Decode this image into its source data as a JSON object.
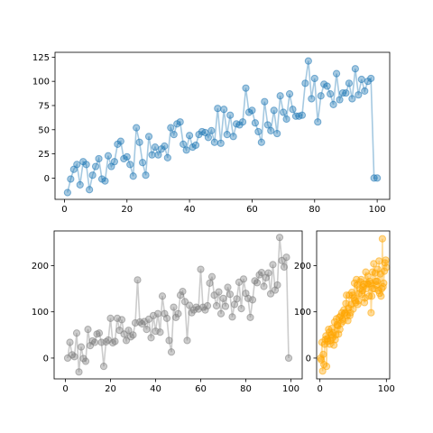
{
  "chart_data": [
    {
      "type": "line",
      "panel": "top",
      "title": "",
      "xlabel": "",
      "ylabel": "",
      "xlim": [
        -3,
        104
      ],
      "ylim": [
        -22,
        130
      ],
      "xticks": [
        0,
        20,
        40,
        60,
        80,
        100
      ],
      "yticks": [
        0,
        25,
        50,
        75,
        100,
        125
      ],
      "grid": false,
      "legend": "none",
      "color": "#1f77b4",
      "marker": "circle",
      "series": [
        {
          "x": [
            1,
            2,
            3,
            4,
            5,
            6,
            7,
            8,
            9,
            10,
            11,
            12,
            13,
            14,
            15,
            16,
            17,
            18,
            19,
            20,
            21,
            22,
            23,
            24,
            25,
            26,
            27,
            28,
            29,
            30,
            31,
            32,
            33,
            34,
            35,
            36,
            37,
            38,
            39,
            40,
            41,
            42,
            43,
            44,
            45,
            46,
            47,
            48,
            49,
            50,
            51,
            52,
            53,
            54,
            55,
            56,
            57,
            58,
            59,
            60,
            61,
            62,
            63,
            64,
            65,
            66,
            67,
            68,
            69,
            70,
            71,
            72,
            73,
            74,
            75,
            76,
            77,
            78,
            79,
            80,
            81,
            82,
            83,
            84,
            85,
            86,
            87,
            88,
            89,
            90,
            91,
            92,
            93,
            94,
            95,
            96,
            97,
            98,
            99,
            100
          ],
          "y": [
            -15,
            -1,
            9,
            14,
            -7,
            17,
            14,
            -12,
            3,
            12,
            20,
            -1,
            -3,
            23,
            12,
            17,
            35,
            38,
            20,
            22,
            14,
            2,
            52,
            37,
            16,
            3,
            43,
            24,
            32,
            24,
            30,
            33,
            21,
            52,
            45,
            56,
            58,
            35,
            29,
            44,
            32,
            34,
            45,
            48,
            47,
            42,
            49,
            37,
            72,
            36,
            71,
            45,
            65,
            43,
            56,
            55,
            58,
            93,
            68,
            70,
            57,
            48,
            37,
            79,
            55,
            49,
            70,
            46,
            85,
            68,
            61,
            87,
            71,
            64,
            64,
            65,
            98,
            121,
            82,
            103,
            58,
            85,
            97,
            95,
            87,
            76,
            108,
            81,
            88,
            88,
            98,
            82,
            113,
            86,
            102,
            90,
            100,
            103,
            0,
            0
          ]
        }
      ]
    },
    {
      "type": "line",
      "panel": "bottom-left",
      "title": "",
      "xlabel": "",
      "ylabel": "",
      "xlim": [
        -5,
        105
      ],
      "ylim": [
        -45,
        275
      ],
      "xticks": [
        0,
        20,
        40,
        60,
        80,
        100
      ],
      "yticks": [
        0,
        100,
        200
      ],
      "grid": false,
      "legend": "none",
      "color": "#7f7f7f",
      "marker": "circle",
      "series": [
        {
          "x": [
            1,
            2,
            3,
            4,
            5,
            6,
            7,
            8,
            9,
            10,
            11,
            12,
            13,
            14,
            15,
            16,
            17,
            18,
            19,
            20,
            21,
            22,
            23,
            24,
            25,
            26,
            27,
            28,
            29,
            30,
            31,
            32,
            33,
            34,
            35,
            36,
            37,
            38,
            39,
            40,
            41,
            42,
            43,
            44,
            45,
            46,
            47,
            48,
            49,
            50,
            51,
            52,
            53,
            54,
            55,
            56,
            57,
            58,
            59,
            60,
            61,
            62,
            63,
            64,
            65,
            66,
            67,
            68,
            69,
            70,
            71,
            72,
            73,
            74,
            75,
            76,
            77,
            78,
            79,
            80,
            81,
            82,
            83,
            84,
            85,
            86,
            87,
            88,
            89,
            90,
            91,
            92,
            93,
            94,
            95,
            96,
            97,
            98,
            99
          ],
          "y": [
            0,
            34,
            7,
            3,
            54,
            -30,
            24,
            -1,
            -7,
            62,
            27,
            37,
            34,
            52,
            54,
            34,
            -18,
            35,
            39,
            86,
            33,
            36,
            86,
            60,
            83,
            52,
            38,
            60,
            46,
            50,
            76,
            169,
            78,
            74,
            79,
            62,
            84,
            44,
            92,
            58,
            96,
            56,
            134,
            96,
            86,
            38,
            13,
            110,
            88,
            96,
            136,
            144,
            122,
            38,
            114,
            98,
            104,
            110,
            106,
            192,
            110,
            104,
            113,
            162,
            176,
            136,
            113,
            143,
            96,
            129,
            112,
            153,
            138,
            89,
            116,
            128,
            164,
            107,
            171,
            140,
            129,
            88,
            126,
            167,
            163,
            180,
            185,
            155,
            174,
            184,
            139,
            202,
            147,
            158,
            261,
            211,
            197,
            218,
            0
          ]
        }
      ]
    },
    {
      "type": "line",
      "panel": "bottom-right",
      "title": "",
      "xlabel": "",
      "ylabel": "",
      "xlim": [
        -5,
        105
      ],
      "ylim": [
        -45,
        275
      ],
      "xticks": [
        0,
        100
      ],
      "yticks": [
        0,
        100,
        200
      ],
      "grid": false,
      "legend": "none",
      "color": "#ffa500",
      "marker": "circle",
      "series": [
        {
          "x": [
            1,
            2,
            3,
            4,
            5,
            6,
            7,
            8,
            9,
            10,
            11,
            12,
            13,
            14,
            15,
            16,
            17,
            18,
            19,
            20,
            21,
            22,
            23,
            24,
            25,
            26,
            27,
            28,
            29,
            30,
            31,
            32,
            33,
            34,
            35,
            36,
            37,
            38,
            39,
            40,
            41,
            42,
            43,
            44,
            45,
            46,
            47,
            48,
            49,
            50,
            51,
            52,
            53,
            54,
            55,
            56,
            57,
            58,
            59,
            60,
            61,
            62,
            63,
            64,
            65,
            66,
            67,
            68,
            69,
            70,
            71,
            72,
            73,
            74,
            75,
            76,
            77,
            78,
            79,
            80,
            81,
            82,
            83,
            84,
            85,
            86,
            87,
            88,
            89,
            90,
            91,
            92,
            93,
            94,
            95,
            96,
            97,
            98,
            99,
            100
          ],
          "y": [
            0,
            -4,
            34,
            -28,
            8,
            -14,
            30,
            40,
            48,
            -18,
            42,
            36,
            62,
            56,
            30,
            38,
            50,
            64,
            44,
            55,
            28,
            78,
            40,
            50,
            85,
            72,
            70,
            52,
            88,
            62,
            91,
            75,
            98,
            84,
            80,
            104,
            96,
            98,
            118,
            136,
            92,
            81,
            108,
            136,
            92,
            98,
            116,
            142,
            136,
            106,
            130,
            162,
            124,
            120,
            170,
            158,
            116,
            124,
            140,
            150,
            165,
            170,
            138,
            146,
            154,
            160,
            120,
            130,
            186,
            150,
            161,
            177,
            160,
            134,
            166,
            162,
            98,
            134,
            186,
            150,
            204,
            150,
            184,
            166,
            158,
            166,
            192,
            146,
            210,
            140,
            182,
            134,
            150,
            258,
            154,
            162,
            188,
            206,
            212,
            196
          ]
        }
      ]
    }
  ]
}
